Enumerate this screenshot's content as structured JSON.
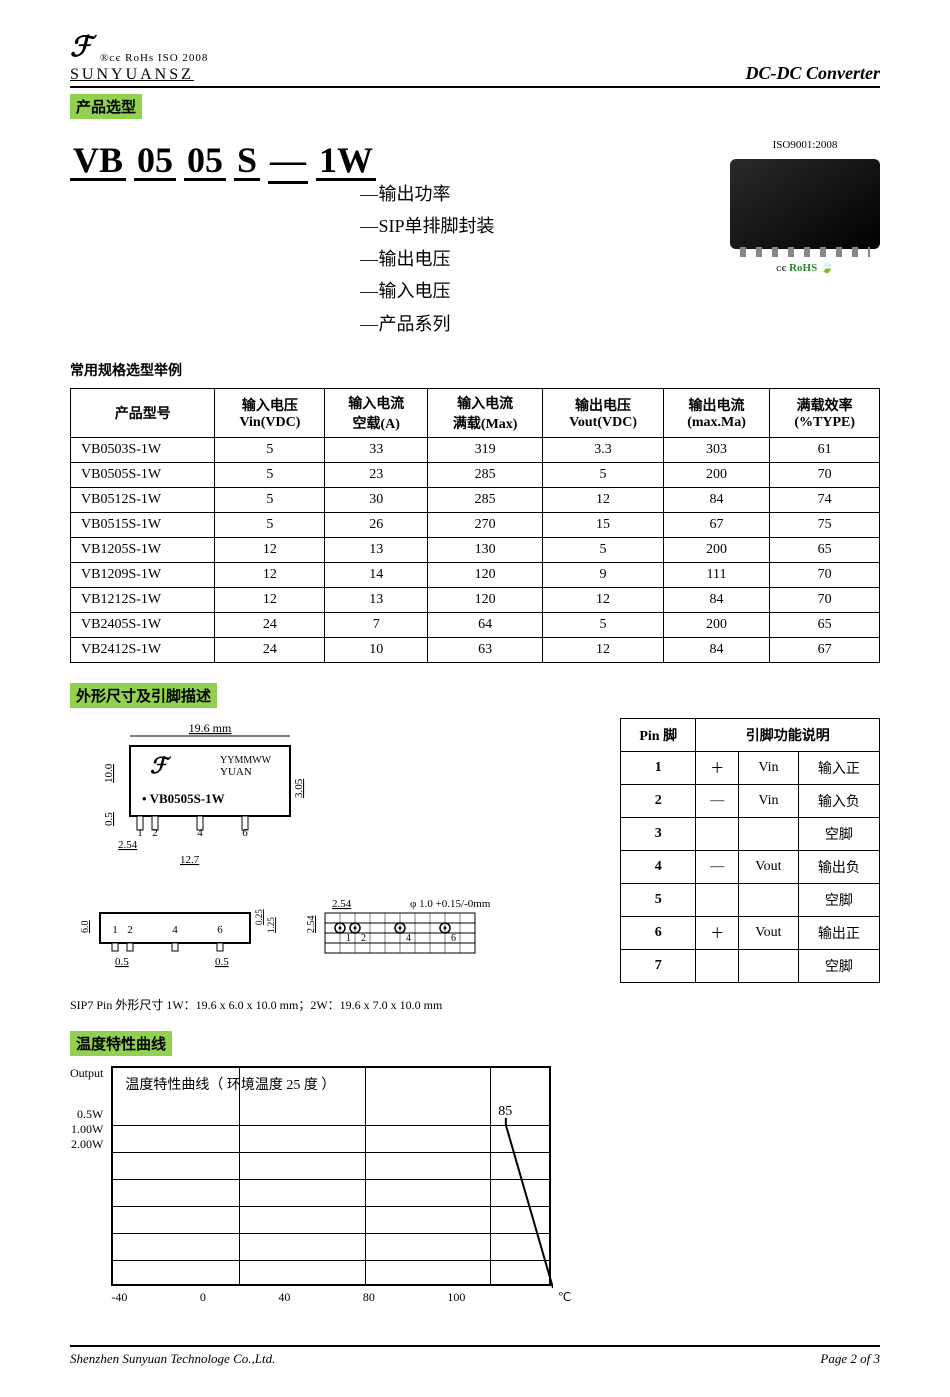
{
  "header": {
    "logo_marks": "®ᴄє  RoHs  ISO 2008",
    "brand": "SUNYUANSZ",
    "right": "DC-DC Converter"
  },
  "section_bar": "产品选型",
  "partcode": {
    "segs": [
      "VB",
      "05",
      "05",
      "S",
      "—",
      "1W"
    ],
    "callouts": [
      "输出功率",
      "SIP单排脚封装",
      "输出电压",
      "输入电压",
      "产品系列"
    ]
  },
  "iso": {
    "title": "ISO9001:2008",
    "cert_ce": "ᴄє",
    "cert_rohs": "RᴏHS",
    "cert_leaf": "🍃"
  },
  "spec_subhead": "常用规格选型举例",
  "spec_table": {
    "headers": [
      "产品型号",
      "输入电压\nVin(VDC)",
      "输入电流\n空载(A)",
      "输入电流\n满载(Max)",
      "输出电压\nVout(VDC)",
      "输出电流\n(max.Ma)",
      "满载效率\n(%TYPE)"
    ],
    "rows": [
      [
        "VB0503S-1W",
        "5",
        "33",
        "319",
        "3.3",
        "303",
        "61"
      ],
      [
        "VB0505S-1W",
        "5",
        "23",
        "285",
        "5",
        "200",
        "70"
      ],
      [
        "VB0512S-1W",
        "5",
        "30",
        "285",
        "12",
        "84",
        "74"
      ],
      [
        "VB0515S-1W",
        "5",
        "26",
        "270",
        "15",
        "67",
        "75"
      ],
      [
        "VB1205S-1W",
        "12",
        "13",
        "130",
        "5",
        "200",
        "65"
      ],
      [
        "VB1209S-1W",
        "12",
        "14",
        "120",
        "9",
        "111",
        "70"
      ],
      [
        "VB1212S-1W",
        "12",
        "13",
        "120",
        "12",
        "84",
        "70"
      ],
      [
        "VB2405S-1W",
        "24",
        "7",
        "64",
        "5",
        "200",
        "65"
      ],
      [
        "VB2412S-1W",
        "24",
        "10",
        "63",
        "12",
        "84",
        "67"
      ]
    ]
  },
  "dim_section": "外形尺寸及引脚描述",
  "dim": {
    "top_w": "19.6 mm",
    "date": "YYMMWW",
    "mfr": "YUAN",
    "part": "• VB0505S-1W",
    "h10": "10.0",
    "h305": "3.05",
    "h05": "0.5",
    "p254": "2.54",
    "p127": "12.7",
    "pins_top": [
      "1",
      "2",
      "4",
      "6"
    ],
    "bot_h": "6.0",
    "bot_pins": [
      "1",
      "2",
      "4",
      "6"
    ],
    "bot_05l": "0.5",
    "bot_05r": "0.5",
    "bot_025": "0.25",
    "bot_125": "1.25",
    "right_254_a": "2.54",
    "right_254_b": "2.54",
    "right_phi": "φ 1.0 +0.15/-0mm",
    "right_pins": [
      "1",
      "2",
      "4",
      "6"
    ],
    "note": "SIP7 Pin 外形尺寸    1W：19.6 x 6.0 x 10.0 mm；2W：19.6 x 7.0 x 10.0 mm"
  },
  "pin_table": {
    "h1": "Pin 脚",
    "h2": "引脚功能说明",
    "rows": [
      [
        "1",
        "＋",
        "Vin",
        "输入正"
      ],
      [
        "2",
        "—",
        "Vin",
        "输入负"
      ],
      [
        "3",
        "",
        "",
        "空脚"
      ],
      [
        "4",
        "—",
        "Vout",
        "输出负"
      ],
      [
        "5",
        "",
        "",
        "空脚"
      ],
      [
        "6",
        "＋",
        "Vout",
        "输出正"
      ],
      [
        "7",
        "",
        "",
        "空脚"
      ]
    ]
  },
  "temp_section": "温度特性曲线",
  "chart": {
    "ylabel_top": "Output",
    "ylabels": [
      "0.5W",
      "1.00W",
      "2.00W"
    ],
    "title": "温度特性曲线（ 环境温度 25 度 ）",
    "xticks": [
      "-40",
      "0",
      "40",
      "80",
      "100"
    ],
    "xunit": "℃",
    "marker85": "85",
    "colors": {
      "border": "#000000",
      "grid": "#000000",
      "line": "#000000",
      "bg": "#ffffff"
    },
    "xlim": [
      -40,
      100
    ],
    "derate_start_x": 85,
    "derate_end_x": 100
  },
  "footer": {
    "left": "Shenzhen Sunyuan Technologe Co.,Ltd.",
    "right": "Page 2 of 3"
  }
}
